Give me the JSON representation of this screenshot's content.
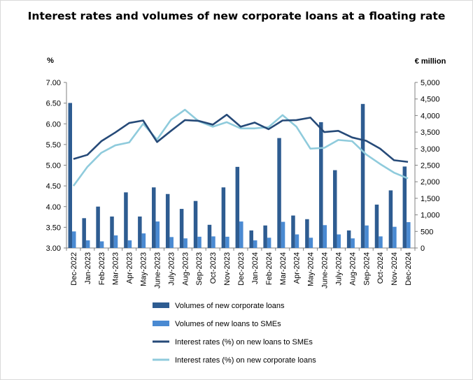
{
  "chart_data": {
    "type": "bar",
    "title": "Interest rates and volumes of new corporate loans at a floating rate",
    "ylabel_left": "%",
    "ylabel_right": "€ million",
    "ylim_left": [
      3.0,
      7.0
    ],
    "yticks_left": [
      "3.00",
      "3.50",
      "4.00",
      "4.50",
      "5.00",
      "5.50",
      "6.00",
      "6.50",
      "7.00"
    ],
    "ylim_right": [
      0,
      5000
    ],
    "yticks_right": [
      "0",
      "500",
      "1,000",
      "1,500",
      "2,000",
      "2,500",
      "3,000",
      "3,500",
      "4,000",
      "4,500",
      "5,000"
    ],
    "grid": false,
    "legend_position": "bottom",
    "categories": [
      "Dec-2022",
      "Jan-2023",
      "Feb-2023",
      "Mar-2023",
      "Apr-2023",
      "May-2023",
      "June-2023",
      "July-2023",
      "Aug-2023",
      "Sep-2023",
      "Oct-2023",
      "Nov-2023",
      "Dec-2023",
      "Jan-2024",
      "Feb-2024",
      "Mar-2024",
      "Apr-2024",
      "May-2024",
      "June-2024",
      "July-2024",
      "Aug-2024",
      "Sep-2024",
      "Oct-2024",
      "Nov-2024",
      "Dec-2024"
    ],
    "series": [
      {
        "name": "Volumes of new corporate loans",
        "type": "bar",
        "axis": "right",
        "color": "#2e5c91",
        "values": [
          4380,
          900,
          1250,
          950,
          1680,
          950,
          1830,
          1630,
          1180,
          1420,
          700,
          1830,
          2450,
          530,
          680,
          3320,
          980,
          870,
          3800,
          2350,
          530,
          4350,
          1310,
          1740,
          2460
        ]
      },
      {
        "name": "Volumes of new loans to SMEs",
        "type": "bar",
        "axis": "right",
        "color": "#4a8ad2",
        "values": [
          500,
          230,
          200,
          380,
          230,
          440,
          800,
          330,
          290,
          340,
          350,
          340,
          800,
          230,
          310,
          790,
          410,
          310,
          690,
          410,
          290,
          680,
          350,
          640,
          780
        ]
      },
      {
        "name": "Interest rates (%) on new loans to SMEs",
        "type": "line",
        "axis": "left",
        "color": "#264a78",
        "values": [
          5.15,
          5.25,
          5.58,
          5.79,
          6.02,
          6.08,
          5.56,
          5.83,
          6.09,
          6.07,
          5.98,
          6.22,
          5.93,
          6.03,
          5.87,
          6.08,
          6.09,
          6.15,
          5.8,
          5.83,
          5.67,
          5.59,
          5.4,
          5.12,
          5.08
        ]
      },
      {
        "name": "Interest rates (%) on new corporate loans",
        "type": "line",
        "axis": "left",
        "color": "#8fcbdc",
        "values": [
          4.5,
          4.96,
          5.3,
          5.48,
          5.55,
          6.0,
          5.62,
          6.1,
          6.34,
          6.06,
          5.93,
          6.04,
          5.89,
          5.89,
          5.92,
          6.21,
          5.93,
          5.4,
          5.42,
          5.61,
          5.58,
          5.26,
          5.03,
          4.82,
          4.68
        ]
      }
    ]
  }
}
